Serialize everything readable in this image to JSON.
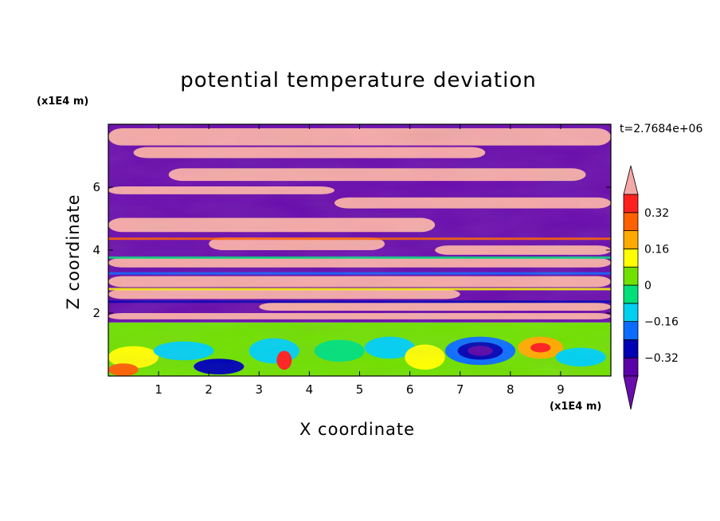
{
  "chart_data": {
    "type": "heatmap",
    "title": "potential temperature deviation",
    "xlabel": "X coordinate",
    "ylabel": "Z coordinate",
    "x_unit": "(x1E4 m)",
    "y_unit": "(x1E4 m)",
    "time_label": "t=2.7684e+06",
    "xlim": [
      0,
      10
    ],
    "ylim": [
      0,
      8
    ],
    "x_ticks": [
      "1",
      "2",
      "3",
      "4",
      "5",
      "6",
      "7",
      "8",
      "9"
    ],
    "y_ticks": [
      "2",
      "4",
      "6"
    ],
    "colorbar": {
      "labels": [
        "0.32",
        "0.16",
        "0",
        "-0.16",
        "-0.32"
      ],
      "levels": [
        -0.4,
        -0.32,
        -0.24,
        -0.16,
        -0.08,
        0,
        0.08,
        0.16,
        0.24,
        0.32,
        0.4
      ],
      "colors": [
        "#6a0dad",
        "#5a00a8",
        "#0000b4",
        "#0a6cff",
        "#00d0f0",
        "#00e07a",
        "#70e000",
        "#ffff00",
        "#ffaa00",
        "#ff6000",
        "#ff2020",
        "#f4a8a8"
      ],
      "extend": "both"
    },
    "grid": false,
    "legend": "colorbar at right"
  }
}
